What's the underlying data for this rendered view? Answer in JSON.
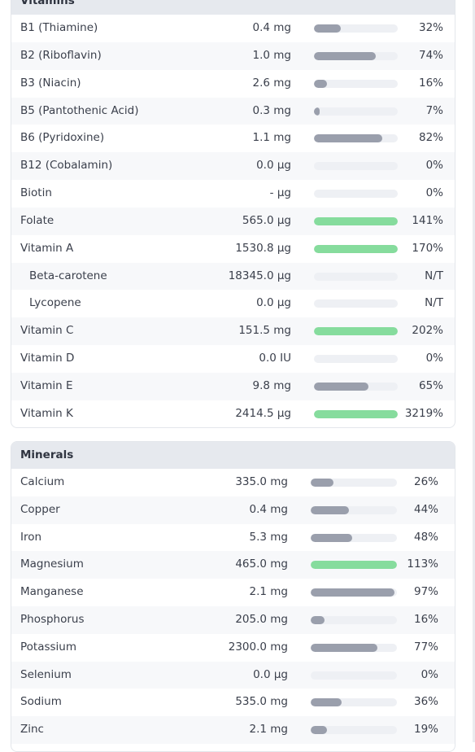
{
  "colors": {
    "bar_gray": "#9a9fac",
    "bar_green": "#86dc9d",
    "track": "#eef0f4",
    "header_bg": "#e6e9ee"
  },
  "vitamins": {
    "title": "Vitamins",
    "rows": [
      {
        "name": "B1 (Thiamine)",
        "amount": "0.4 mg",
        "percent": "32%",
        "fill": 0.32,
        "status": "gray"
      },
      {
        "name": "B2 (Riboflavin)",
        "amount": "1.0 mg",
        "percent": "74%",
        "fill": 0.74,
        "status": "gray"
      },
      {
        "name": "B3 (Niacin)",
        "amount": "2.6 mg",
        "percent": "16%",
        "fill": 0.16,
        "status": "gray"
      },
      {
        "name": "B5 (Pantothenic Acid)",
        "amount": "0.3 mg",
        "percent": "7%",
        "fill": 0.07,
        "status": "gray"
      },
      {
        "name": "B6 (Pyridoxine)",
        "amount": "1.1 mg",
        "percent": "82%",
        "fill": 0.82,
        "status": "gray"
      },
      {
        "name": "B12 (Cobalamin)",
        "amount": "0.0 µg",
        "percent": "0%",
        "fill": 0,
        "status": "gray"
      },
      {
        "name": "Biotin",
        "amount": "- µg",
        "percent": "0%",
        "fill": 0,
        "status": "gray"
      },
      {
        "name": "Folate",
        "amount": "565.0 µg",
        "percent": "141%",
        "fill": 1,
        "status": "green"
      },
      {
        "name": "Vitamin A",
        "amount": "1530.8 µg",
        "percent": "170%",
        "fill": 1,
        "status": "green"
      },
      {
        "name": "Beta-carotene",
        "amount": "18345.0 µg",
        "percent": "N/T",
        "fill": 0,
        "status": "gray",
        "sub": true
      },
      {
        "name": "Lycopene",
        "amount": "0.0 µg",
        "percent": "N/T",
        "fill": 0,
        "status": "gray",
        "sub": true
      },
      {
        "name": "Vitamin C",
        "amount": "151.5 mg",
        "percent": "202%",
        "fill": 1,
        "status": "green"
      },
      {
        "name": "Vitamin D",
        "amount": "0.0 IU",
        "percent": "0%",
        "fill": 0,
        "status": "gray"
      },
      {
        "name": "Vitamin E",
        "amount": "9.8 mg",
        "percent": "65%",
        "fill": 0.65,
        "status": "gray"
      },
      {
        "name": "Vitamin K",
        "amount": "2414.5 µg",
        "percent": "3219%",
        "fill": 1,
        "status": "green"
      }
    ]
  },
  "minerals": {
    "title": "Minerals",
    "rows": [
      {
        "name": "Calcium",
        "amount": "335.0 mg",
        "percent": "26%",
        "fill": 0.26,
        "status": "gray"
      },
      {
        "name": "Copper",
        "amount": "0.4 mg",
        "percent": "44%",
        "fill": 0.44,
        "status": "gray"
      },
      {
        "name": "Iron",
        "amount": "5.3 mg",
        "percent": "48%",
        "fill": 0.48,
        "status": "gray"
      },
      {
        "name": "Magnesium",
        "amount": "465.0 mg",
        "percent": "113%",
        "fill": 1,
        "status": "green"
      },
      {
        "name": "Manganese",
        "amount": "2.1 mg",
        "percent": "97%",
        "fill": 0.97,
        "status": "gray"
      },
      {
        "name": "Phosphorus",
        "amount": "205.0 mg",
        "percent": "16%",
        "fill": 0.16,
        "status": "gray"
      },
      {
        "name": "Potassium",
        "amount": "2300.0 mg",
        "percent": "77%",
        "fill": 0.77,
        "status": "gray"
      },
      {
        "name": "Selenium",
        "amount": "0.0 µg",
        "percent": "0%",
        "fill": 0,
        "status": "gray"
      },
      {
        "name": "Sodium",
        "amount": "535.0 mg",
        "percent": "36%",
        "fill": 0.36,
        "status": "gray"
      },
      {
        "name": "Zinc",
        "amount": "2.1 mg",
        "percent": "19%",
        "fill": 0.19,
        "status": "gray"
      }
    ]
  }
}
